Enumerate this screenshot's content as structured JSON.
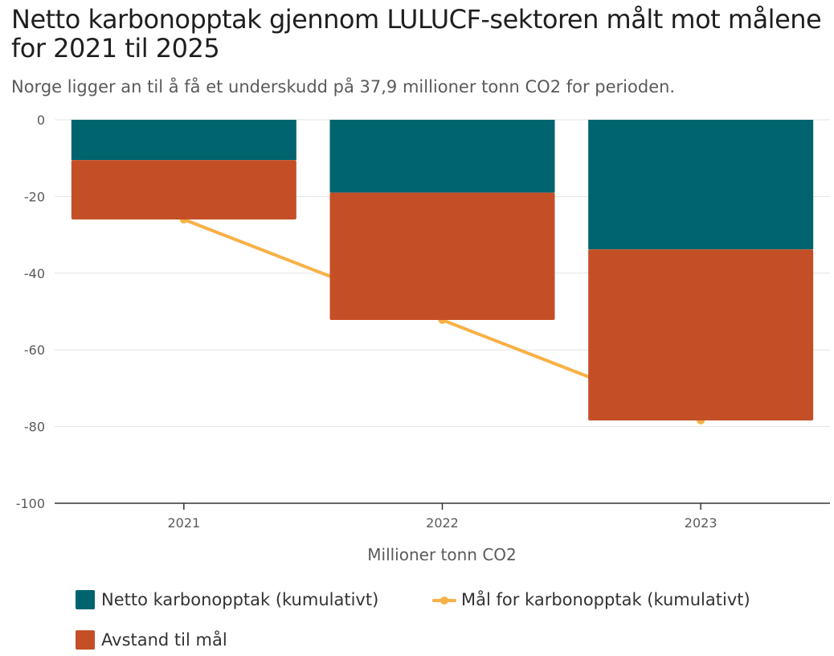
{
  "title": "Netto karbonopptak gjennom LULUCF-sektoren målt mot målene for 2021 til 2025",
  "subtitle": "Norge ligger an til å få et underskudd på 37,9 millioner tonn CO2 for perioden.",
  "chart_data": {
    "type": "bar",
    "stacked": true,
    "categories": [
      "2021",
      "2022",
      "2023"
    ],
    "series": [
      {
        "name": "Netto karbonopptak (kumulativt)",
        "kind": "bar",
        "color": "#00646e",
        "values": [
          -10.5,
          -19,
          -33.8
        ]
      },
      {
        "name": "Avstand til mål",
        "kind": "bar",
        "color": "#c44f27",
        "values": [
          -15.5,
          -33.2,
          -44.6
        ]
      },
      {
        "name": "Mål for karbonopptak (kumulativt)",
        "kind": "line",
        "color": "#f8b146",
        "values": [
          -26,
          -52.2,
          -78.4
        ]
      }
    ],
    "xlabel": "Millioner tonn CO2",
    "ylabel": "",
    "ylim": [
      -100,
      0
    ],
    "yticks": [
      0,
      -20,
      -40,
      -60,
      -80,
      -100
    ],
    "grid": true,
    "legend_position": "bottom"
  }
}
